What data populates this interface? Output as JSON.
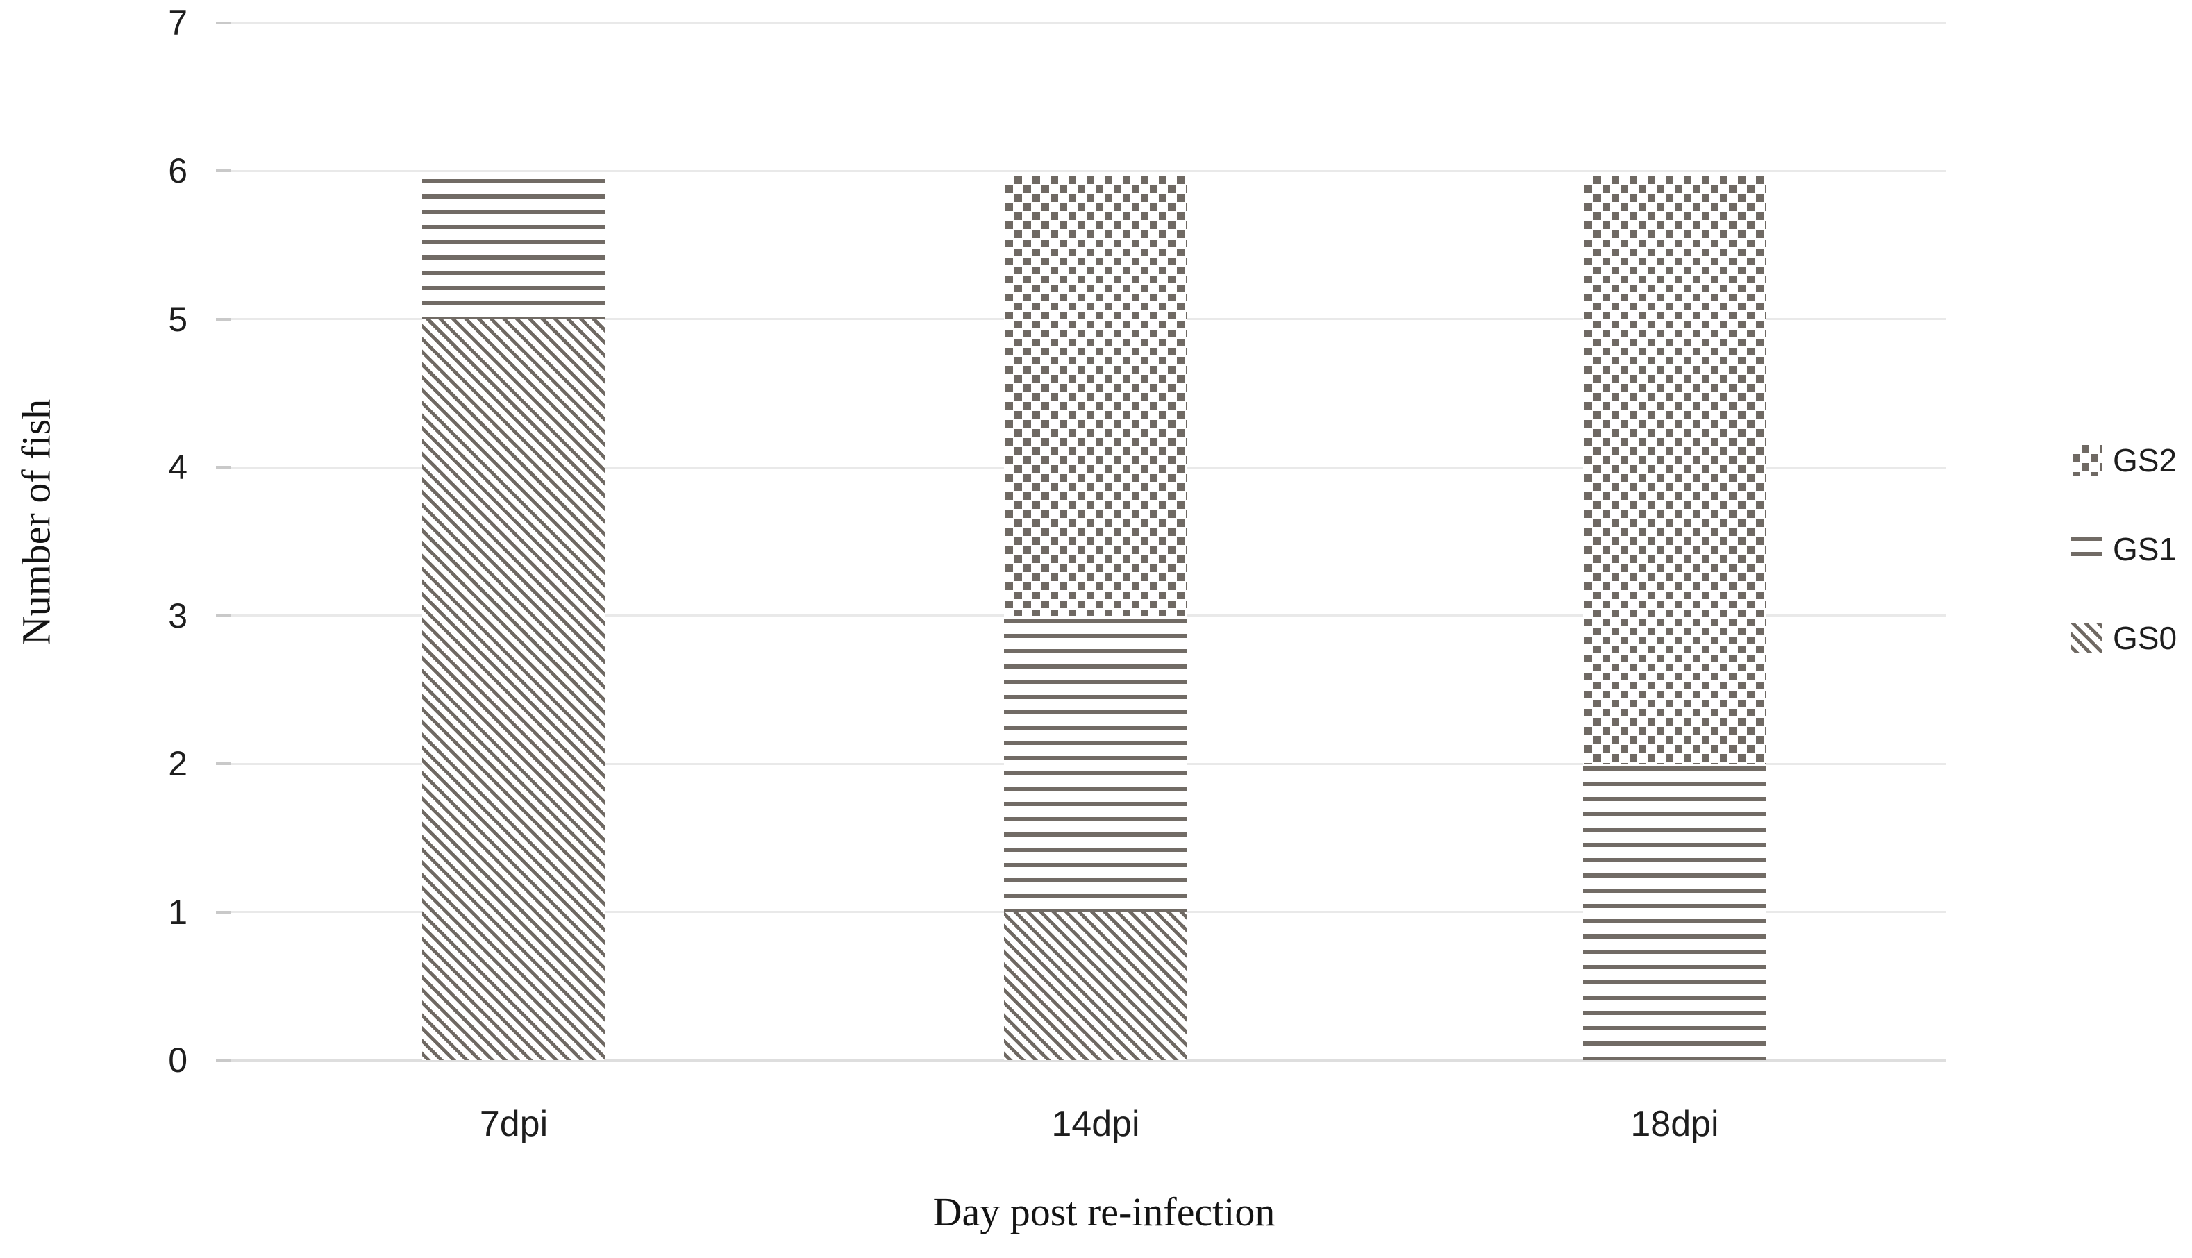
{
  "chart_data": {
    "type": "bar",
    "stacked": true,
    "title": "",
    "xlabel": "Day post re-infection",
    "ylabel": "Number of fish",
    "categories": [
      "7dpi",
      "14dpi",
      "18dpi"
    ],
    "series": [
      {
        "name": "GS0",
        "pattern": "diagonal-hatch",
        "values": [
          5,
          1,
          0
        ]
      },
      {
        "name": "GS1",
        "pattern": "horizontal-stripes",
        "values": [
          1,
          2,
          2
        ]
      },
      {
        "name": "GS2",
        "pattern": "checkerboard",
        "values": [
          0,
          3,
          4
        ]
      }
    ],
    "totals_per_category": [
      6,
      6,
      6
    ],
    "ylim": [
      0,
      7
    ],
    "yticks": [
      "0",
      "1",
      "2",
      "3",
      "4",
      "5",
      "6",
      "7"
    ],
    "grid": true,
    "legend_position": "right",
    "legend_order": [
      "GS2",
      "GS1",
      "GS0"
    ],
    "colors": {
      "pattern": "#6f6963",
      "pattern_line": "#716b65",
      "gridline": "#e9e9e9",
      "axis_line": "#dedede",
      "tick": "#c9c9c9",
      "text": "#1e1e1e",
      "background": "#ffffff"
    }
  }
}
